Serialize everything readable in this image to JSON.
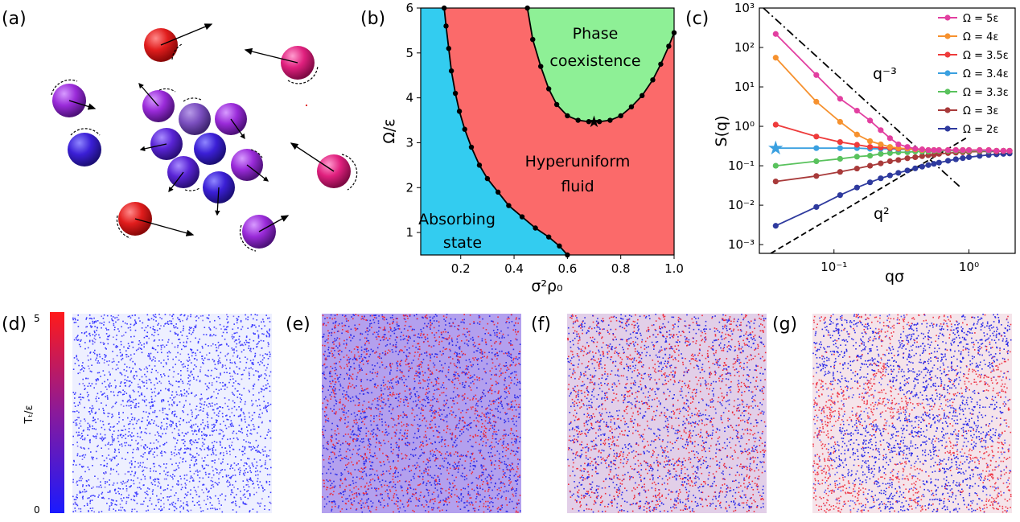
{
  "panel_labels": {
    "a": "(a)",
    "b": "(b)",
    "c": "(c)",
    "d": "(d)",
    "e": "(e)",
    "f": "(f)",
    "g": "(g)"
  },
  "colors": {
    "absorbing": "#33ccf0",
    "hyperuniform": "#fb6a6a",
    "coexistence": "#8ef096",
    "particle_red": "#e11d1d",
    "particle_blue": "#3b1fd6",
    "particle_purple": "#9a2bd9",
    "particle_pink": "#e0207e"
  },
  "chart_data": [
    {
      "type": "area",
      "panel": "(b)",
      "xlabel": "σ²ρ₀",
      "ylabel": "Ω/ε",
      "xlim": [
        0.05,
        1.0
      ],
      "ylim": [
        0.5,
        6.0
      ],
      "xticks": [
        "0.2",
        "0.4",
        "0.6",
        "0.8",
        "1.0"
      ],
      "yticks": [
        "1",
        "2",
        "3",
        "4",
        "5",
        "6"
      ],
      "regions": [
        "Absorbing state",
        "Hyperuniform fluid",
        "Phase coexistence"
      ],
      "absorbing_boundary": {
        "x": [
          0.6,
          0.57,
          0.53,
          0.48,
          0.43,
          0.38,
          0.34,
          0.3,
          0.27,
          0.24,
          0.215,
          0.195,
          0.18,
          0.165,
          0.155,
          0.145,
          0.138
        ],
        "y": [
          0.5,
          0.7,
          0.9,
          1.1,
          1.35,
          1.6,
          1.9,
          2.2,
          2.5,
          2.9,
          3.3,
          3.7,
          4.1,
          4.6,
          5.1,
          5.6,
          6.0
        ]
      },
      "coexistence_boundary": {
        "x": [
          0.45,
          0.47,
          0.5,
          0.53,
          0.56,
          0.6,
          0.64,
          0.68,
          0.72,
          0.76,
          0.8,
          0.84,
          0.88,
          0.92,
          0.95,
          0.98,
          1.0
        ],
        "y": [
          6.0,
          5.3,
          4.7,
          4.2,
          3.85,
          3.6,
          3.5,
          3.47,
          3.47,
          3.5,
          3.6,
          3.8,
          4.05,
          4.4,
          4.75,
          5.15,
          5.45
        ]
      },
      "critical_point": {
        "x": 0.7,
        "y": 3.47
      }
    },
    {
      "type": "line",
      "panel": "(c)",
      "xlabel": "qσ",
      "ylabel": "S(q)",
      "xscale": "log",
      "yscale": "log",
      "xlim": [
        0.028,
        2.2
      ],
      "ylim": [
        0.0006,
        1000
      ],
      "xticks": [
        "10⁻¹",
        "10⁰"
      ],
      "yticks": [
        "10⁻³",
        "10⁻²",
        "10⁻¹",
        "10⁰",
        "10¹",
        "10²",
        "10³"
      ],
      "x": [
        0.037,
        0.074,
        0.111,
        0.148,
        0.185,
        0.222,
        0.26,
        0.3,
        0.35,
        0.4,
        0.45,
        0.5,
        0.55,
        0.6,
        0.7,
        0.8,
        0.9,
        1.0,
        1.2,
        1.4,
        1.6,
        1.8,
        2.0
      ],
      "series": [
        {
          "name": "Ω = 5ε",
          "color": "#e23fa0",
          "values": [
            220,
            20,
            5,
            2.5,
            1.4,
            0.8,
            0.5,
            0.35,
            0.3,
            0.27,
            0.26,
            0.25,
            0.25,
            0.25,
            0.25,
            0.25,
            0.25,
            0.25,
            0.25,
            0.25,
            0.24,
            0.24,
            0.24
          ]
        },
        {
          "name": "Ω = 4ε",
          "color": "#f6912e",
          "values": [
            55,
            4.2,
            1.3,
            0.62,
            0.42,
            0.35,
            0.3,
            0.28,
            0.27,
            0.26,
            0.25,
            0.25,
            0.25,
            0.25,
            0.25,
            0.25,
            0.25,
            0.25,
            0.25,
            0.25,
            0.24,
            0.24,
            0.24
          ]
        },
        {
          "name": "Ω = 3.5ε",
          "color": "#ee3b3b",
          "values": [
            1.1,
            0.55,
            0.4,
            0.34,
            0.3,
            0.29,
            0.28,
            0.27,
            0.27,
            0.26,
            0.26,
            0.25,
            0.25,
            0.25,
            0.25,
            0.25,
            0.25,
            0.25,
            0.25,
            0.25,
            0.24,
            0.24,
            0.24
          ]
        },
        {
          "name": "Ω = 3.4ε",
          "color": "#3aa0e0",
          "values": [
            0.28,
            0.28,
            0.28,
            0.28,
            0.27,
            0.27,
            0.27,
            0.26,
            0.26,
            0.26,
            0.25,
            0.25,
            0.25,
            0.25,
            0.25,
            0.25,
            0.25,
            0.25,
            0.25,
            0.24,
            0.24,
            0.24,
            0.24
          ]
        },
        {
          "name": "Ω = 3.3ε",
          "color": "#59c25d",
          "values": [
            0.1,
            0.13,
            0.15,
            0.17,
            0.18,
            0.2,
            0.21,
            0.22,
            0.22,
            0.23,
            0.23,
            0.23,
            0.24,
            0.24,
            0.24,
            0.24,
            0.24,
            0.24,
            0.24,
            0.24,
            0.24,
            0.24,
            0.24
          ]
        },
        {
          "name": "Ω = 3ε",
          "color": "#a83a3a",
          "values": [
            0.04,
            0.055,
            0.07,
            0.085,
            0.1,
            0.115,
            0.13,
            0.14,
            0.155,
            0.165,
            0.175,
            0.185,
            0.19,
            0.2,
            0.21,
            0.215,
            0.22,
            0.225,
            0.23,
            0.23,
            0.23,
            0.235,
            0.235
          ]
        },
        {
          "name": "Ω = 2ε",
          "color": "#2e3a9e",
          "values": [
            0.003,
            0.009,
            0.018,
            0.028,
            0.038,
            0.048,
            0.057,
            0.066,
            0.076,
            0.086,
            0.095,
            0.104,
            0.112,
            0.12,
            0.134,
            0.146,
            0.156,
            0.165,
            0.178,
            0.188,
            0.195,
            0.2,
            0.205
          ]
        }
      ],
      "reference_lines": [
        {
          "label": "q⁻³",
          "style": "dash-dot",
          "points": [
            [
              0.03,
              1000
            ],
            [
              0.85,
              0.03
            ]
          ]
        },
        {
          "label": "q²",
          "style": "dashed",
          "points": [
            [
              0.034,
              0.0006
            ],
            [
              0.95,
              0.5
            ]
          ]
        }
      ],
      "marker": {
        "shape": "star",
        "x": 0.037,
        "y": 0.28,
        "color": "#3aa0e0"
      }
    }
  ],
  "colorbar": {
    "label": "Tₜ/ε",
    "max": "5",
    "min": "0"
  }
}
